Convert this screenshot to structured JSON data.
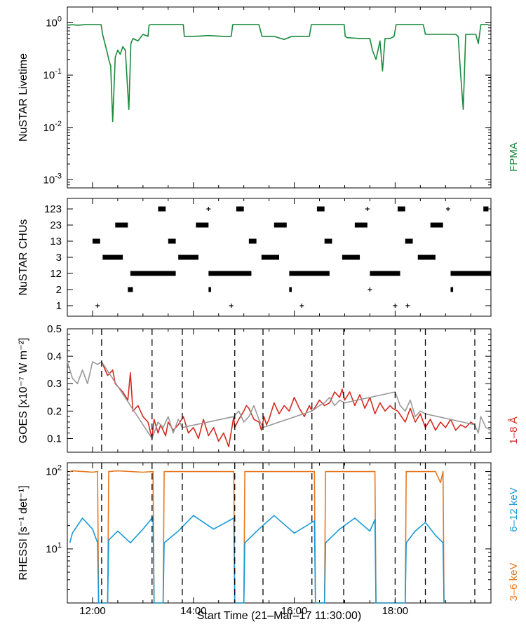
{
  "chart_data": [
    {
      "type": "line",
      "panel": "livetime",
      "ylabel": "NuSTAR Livetime",
      "yscale": "log",
      "ylim": [
        0.0007,
        2
      ],
      "yticks": [
        {
          "value": 1,
          "base": "10",
          "exp": "0"
        },
        {
          "value": 0.1,
          "base": "10",
          "exp": "-1"
        },
        {
          "value": 0.01,
          "base": "10",
          "exp": "-2"
        },
        {
          "value": 0.001,
          "base": "10",
          "exp": "-3"
        }
      ],
      "legend": {
        "label": "FPMA",
        "color": "#1a8a3c"
      },
      "series": [
        {
          "name": "FPMA",
          "color": "#1a8a3c",
          "x": [
            11.5,
            11.6,
            11.7,
            11.85,
            12.0,
            12.17,
            12.2,
            12.3,
            12.32,
            12.36,
            12.4,
            12.45,
            12.5,
            12.55,
            12.6,
            12.65,
            12.72,
            12.76,
            12.8,
            12.9,
            13.0,
            13.1,
            13.12,
            13.15,
            13.2,
            13.3,
            13.5,
            13.7,
            13.8,
            13.82,
            13.86,
            14.0,
            14.3,
            14.6,
            14.75,
            14.78,
            14.8,
            15.0,
            15.2,
            15.3,
            15.36,
            15.4,
            15.6,
            15.8,
            15.95,
            16.1,
            16.3,
            16.34,
            16.38,
            16.5,
            16.7,
            16.9,
            16.99,
            17.01,
            17.05,
            17.3,
            17.5,
            17.55,
            17.62,
            17.7,
            17.75,
            17.8,
            17.9,
            17.98,
            18.02,
            18.2,
            18.4,
            18.5,
            18.56,
            18.6,
            18.8,
            18.95,
            19.0,
            19.2,
            19.25,
            19.3,
            19.35,
            19.4,
            19.5,
            19.6,
            19.65,
            19.7,
            19.75,
            19.85
          ],
          "y": [
            0.9,
            0.92,
            0.9,
            0.92,
            0.92,
            0.92,
            0.6,
            0.25,
            0.2,
            0.15,
            0.013,
            0.22,
            0.3,
            0.25,
            0.35,
            0.3,
            0.022,
            0.4,
            0.5,
            0.45,
            0.6,
            0.55,
            0.9,
            0.92,
            0.92,
            0.92,
            0.92,
            0.92,
            0.92,
            0.55,
            0.55,
            0.55,
            0.57,
            0.55,
            0.55,
            0.92,
            0.92,
            0.92,
            0.92,
            0.92,
            0.55,
            0.55,
            0.55,
            0.48,
            0.55,
            0.55,
            0.55,
            0.92,
            0.92,
            0.92,
            0.92,
            0.92,
            0.92,
            0.55,
            0.52,
            0.5,
            0.5,
            0.3,
            0.2,
            0.45,
            0.12,
            0.5,
            0.5,
            0.55,
            0.92,
            0.92,
            0.92,
            0.92,
            0.92,
            0.6,
            0.6,
            0.6,
            0.6,
            0.6,
            0.55,
            0.1,
            0.022,
            0.6,
            0.6,
            0.6,
            0.4,
            0.92,
            0.92,
            0.92
          ]
        }
      ]
    },
    {
      "type": "scatter",
      "panel": "chus",
      "ylabel": "NuSTAR CHUs",
      "categories": [
        "1",
        "2",
        "12",
        "3",
        "13",
        "23",
        "123"
      ],
      "series": [
        {
          "name": "1",
          "segments": [
            [
              12.1,
              12.1
            ],
            [
              14.75,
              14.75
            ],
            [
              16.15,
              16.15
            ],
            [
              18.0,
              18.0
            ],
            [
              18.25,
              18.25
            ]
          ]
        },
        {
          "name": "2",
          "segments": [
            [
              12.7,
              12.8
            ],
            [
              14.3,
              14.35
            ],
            [
              15.9,
              15.95
            ],
            [
              17.5,
              17.5
            ],
            [
              19.1,
              19.15
            ]
          ]
        },
        {
          "name": "12",
          "segments": [
            [
              12.75,
              13.65
            ],
            [
              14.3,
              15.15
            ],
            [
              15.9,
              16.7
            ],
            [
              17.5,
              18.1
            ],
            [
              19.1,
              19.9
            ]
          ]
        },
        {
          "name": "3",
          "segments": [
            [
              12.2,
              12.6
            ],
            [
              13.7,
              14.1
            ],
            [
              15.35,
              15.7
            ],
            [
              16.95,
              17.3
            ],
            [
              18.45,
              18.8
            ]
          ]
        },
        {
          "name": "13",
          "segments": [
            [
              12.0,
              12.15
            ],
            [
              13.5,
              13.65
            ],
            [
              15.1,
              15.25
            ],
            [
              16.6,
              16.75
            ],
            [
              18.2,
              18.35
            ]
          ]
        },
        {
          "name": "23",
          "segments": [
            [
              12.45,
              12.7
            ],
            [
              14.05,
              14.3
            ],
            [
              15.6,
              15.85
            ],
            [
              17.2,
              17.45
            ],
            [
              18.7,
              18.95
            ]
          ]
        },
        {
          "name": "123",
          "segments": [
            [
              13.3,
              13.45
            ],
            [
              14.3,
              14.3
            ],
            [
              14.85,
              15.0
            ],
            [
              16.45,
              16.6
            ],
            [
              17.45,
              17.45
            ],
            [
              18.05,
              18.2
            ],
            [
              19.05,
              19.05
            ],
            [
              19.75,
              19.85
            ]
          ]
        }
      ]
    },
    {
      "type": "line",
      "panel": "goes",
      "ylabel": "GOES [x10⁻⁷ W m⁻²]",
      "ylim": [
        0.05,
        0.5
      ],
      "yticks": [
        "0.1",
        "0.2",
        "0.3",
        "0.4",
        "0.5"
      ],
      "legend": {
        "label": "1–8 Å",
        "color": "#d42a20"
      },
      "series": [
        {
          "name": "1–8 Å (observed)",
          "color": "#d42a20",
          "x": [
            12.18,
            12.3,
            12.4,
            12.45,
            12.5,
            12.6,
            12.7,
            12.75,
            12.8,
            12.9,
            13.0,
            13.1,
            13.18,
            13.22,
            13.3,
            13.35,
            13.45,
            13.5,
            13.6,
            13.7,
            13.8,
            13.9,
            14.0,
            14.1,
            14.2,
            14.3,
            14.4,
            14.5,
            14.6,
            14.7,
            14.8,
            14.82,
            14.9,
            15.0,
            15.05,
            15.1,
            15.2,
            15.3,
            15.35,
            15.4,
            15.45,
            15.5,
            15.6,
            15.7,
            15.8,
            15.9,
            16.0,
            16.1,
            16.2,
            16.3,
            16.35,
            16.4,
            16.5,
            16.6,
            16.7,
            16.8,
            16.9,
            16.95,
            17.0,
            17.1,
            17.2,
            17.3,
            17.4,
            17.5,
            17.6,
            17.7,
            17.8,
            17.9,
            17.95,
            18.05,
            18.2,
            18.3,
            18.4,
            18.5,
            18.6,
            18.7,
            18.8,
            18.9,
            19.0,
            19.1,
            19.2,
            19.3,
            19.4,
            19.5,
            19.58
          ],
          "y": [
            0.38,
            0.33,
            0.35,
            0.3,
            0.29,
            0.27,
            0.24,
            0.34,
            0.2,
            0.22,
            0.18,
            0.16,
            0.1,
            0.17,
            0.12,
            0.15,
            0.11,
            0.16,
            0.13,
            0.15,
            0.18,
            0.12,
            0.14,
            0.1,
            0.17,
            0.11,
            0.14,
            0.09,
            0.12,
            0.07,
            0.18,
            0.14,
            0.17,
            0.2,
            0.22,
            0.21,
            0.17,
            0.16,
            0.13,
            0.18,
            0.15,
            0.17,
            0.23,
            0.19,
            0.22,
            0.2,
            0.25,
            0.21,
            0.18,
            0.22,
            0.2,
            0.21,
            0.24,
            0.22,
            0.23,
            0.27,
            0.25,
            0.28,
            0.24,
            0.27,
            0.22,
            0.26,
            0.21,
            0.25,
            0.19,
            0.23,
            0.2,
            0.22,
            0.21,
            0.2,
            0.16,
            0.21,
            0.16,
            0.19,
            0.14,
            0.17,
            0.13,
            0.16,
            0.14,
            0.17,
            0.13,
            0.15,
            0.14,
            0.16,
            0.15
          ]
        },
        {
          "name": "1–8 Å (gap)",
          "color": "#999999",
          "x": [
            11.5,
            11.6,
            11.7,
            11.8,
            11.9,
            12.0,
            12.1,
            12.18,
            13.18,
            13.3,
            13.4,
            13.5,
            13.6,
            13.7,
            13.78,
            14.8,
            14.9,
            15.0,
            15.1,
            15.2,
            15.3,
            15.38,
            16.35,
            16.5,
            16.6,
            16.7,
            16.8,
            16.9,
            17.0,
            18.0,
            18.1,
            18.2,
            18.3,
            18.4,
            18.5,
            18.6,
            19.58,
            19.65,
            19.7,
            19.8,
            19.9
          ],
          "y": [
            0.38,
            0.32,
            0.3,
            0.35,
            0.3,
            0.38,
            0.37,
            0.38,
            0.1,
            0.16,
            0.14,
            0.18,
            0.12,
            0.17,
            0.14,
            0.18,
            0.2,
            0.16,
            0.18,
            0.22,
            0.17,
            0.14,
            0.2,
            0.22,
            0.23,
            0.25,
            0.22,
            0.24,
            0.23,
            0.27,
            0.22,
            0.2,
            0.24,
            0.18,
            0.2,
            0.19,
            0.15,
            0.12,
            0.18,
            0.14,
            0.13
          ]
        }
      ]
    },
    {
      "type": "line",
      "panel": "rhessi",
      "ylabel": "RHESSI [s⁻¹ det⁻¹]",
      "yscale": "log",
      "ylim": [
        2,
        130
      ],
      "yticks": [
        {
          "value": 100,
          "base": "10",
          "exp": "2"
        },
        {
          "value": 10,
          "base": "10",
          "exp": "1"
        }
      ],
      "legend": [
        {
          "label": "6–12 keV",
          "color": "#1a9ad6"
        },
        {
          "label": "3–6 keV",
          "color": "#e8781e"
        }
      ],
      "series": [
        {
          "name": "3–6 keV",
          "color": "#e8781e",
          "x": [
            11.55,
            11.6,
            12.0,
            12.1,
            12.12,
            12.3,
            12.32,
            12.5,
            13.0,
            13.2,
            13.22,
            13.4,
            13.42,
            14.0,
            14.5,
            14.8,
            14.82,
            15.0,
            15.02,
            15.5,
            16.0,
            16.4,
            16.42,
            16.6,
            16.62,
            17.2,
            17.5,
            17.6,
            17.62,
            18.2,
            18.22,
            18.5,
            18.8,
            18.9,
            18.95,
            18.97
          ],
          "y": [
            100,
            102,
            98,
            100,
            2,
            2,
            100,
            102,
            98,
            100,
            2,
            2,
            100,
            100,
            100,
            100,
            2,
            2,
            100,
            100,
            100,
            100,
            2,
            2,
            100,
            100,
            100,
            100,
            2,
            2,
            100,
            100,
            100,
            72,
            100,
            2
          ]
        },
        {
          "name": "6–12 keV",
          "color": "#1a9ad6",
          "x": [
            11.55,
            11.6,
            11.8,
            12.0,
            12.1,
            12.12,
            12.3,
            12.32,
            12.5,
            12.75,
            13.0,
            13.2,
            13.22,
            13.4,
            13.42,
            13.7,
            14.0,
            14.4,
            14.8,
            14.82,
            15.0,
            15.02,
            15.3,
            15.6,
            16.0,
            16.4,
            16.42,
            16.6,
            16.62,
            16.9,
            17.2,
            17.5,
            17.6,
            17.62,
            18.2,
            18.22,
            18.4,
            18.6,
            18.8,
            18.95,
            18.97
          ],
          "y": [
            12,
            16,
            25,
            18,
            12,
            2,
            2,
            13,
            17,
            12,
            18,
            26,
            2,
            2,
            12,
            17,
            27,
            18,
            25,
            2,
            2,
            12,
            18,
            27,
            16,
            23,
            2,
            2,
            12,
            18,
            25,
            17,
            24,
            2,
            2,
            12,
            17,
            22,
            15,
            12,
            2
          ]
        }
      ]
    }
  ],
  "shared": {
    "xlabel": "Start Time (21–Mar–17 11:30:00)",
    "xlim": [
      11.5,
      19.9
    ],
    "xticks": [
      {
        "value": 12,
        "label": "12:00"
      },
      {
        "value": 14,
        "label": "14:00"
      },
      {
        "value": 16,
        "label": "16:00"
      },
      {
        "value": 18,
        "label": "18:00"
      }
    ],
    "vertical_lines": [
      12.18,
      13.18,
      13.78,
      14.82,
      15.38,
      16.35,
      16.98,
      18.0,
      18.6,
      19.58
    ]
  }
}
